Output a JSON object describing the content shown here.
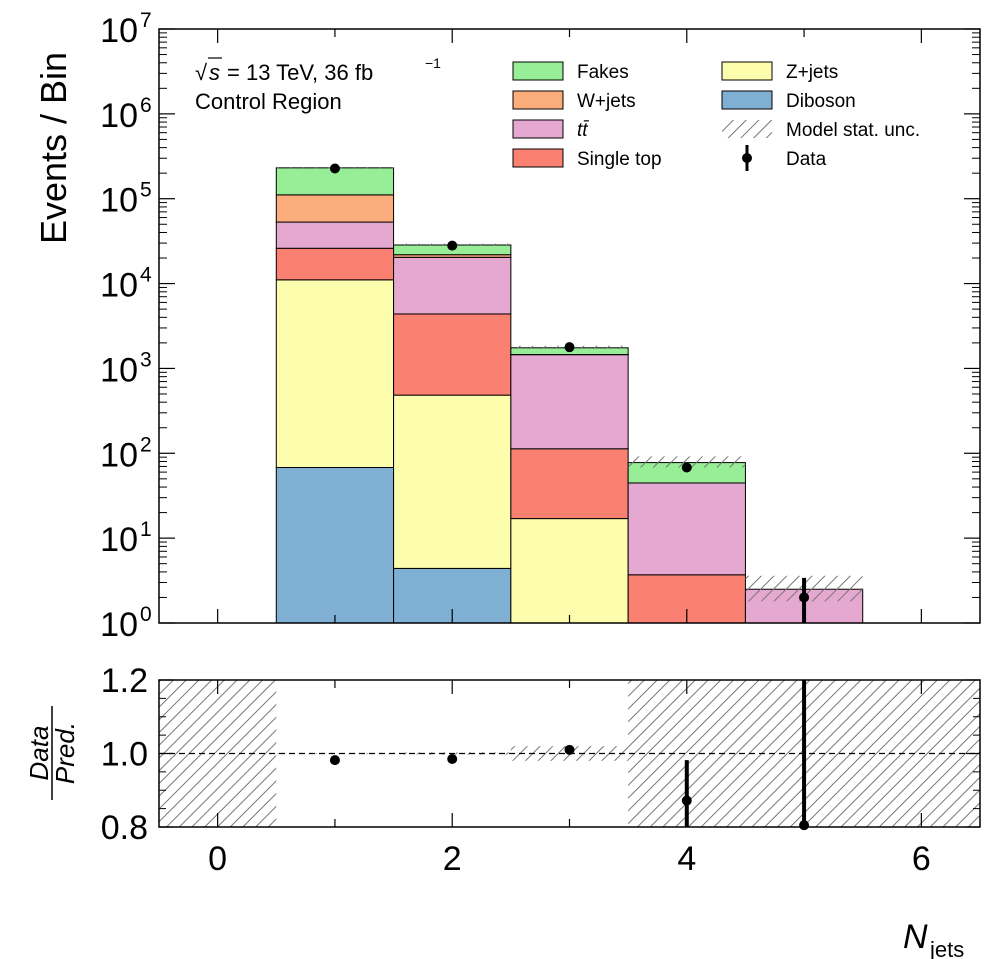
{
  "chart_data": [
    {
      "type": "bar",
      "stacked": true,
      "yscale": "log",
      "title": "",
      "ylabel": "Events / Bin",
      "xlabel": "N_jets",
      "xlim": [
        -0.5,
        6.5
      ],
      "ylim": [
        1,
        10000000
      ],
      "y_tick_exponents": [
        "0",
        "1",
        "2",
        "3",
        "4",
        "5",
        "6",
        "7"
      ],
      "y_tick_base": "10",
      "annotations": {
        "energy_line": "= 13 TeV, 36 fb",
        "energy_sqrt": "√",
        "energy_s": "s",
        "lumi_exp": "−1",
        "region": "Control Region"
      },
      "bins": [
        1,
        2,
        3,
        4,
        5
      ],
      "series": [
        {
          "name": "Diboson",
          "color": "#7fafd3",
          "values": [
            68,
            4.4,
            0,
            0,
            0
          ]
        },
        {
          "name": "Z+jets",
          "color": "#fdfdae",
          "values": [
            11000,
            480,
            17,
            0,
            0
          ]
        },
        {
          "name": "Single top",
          "color": "#fa8072",
          "values": [
            15000,
            3900,
            96,
            3.7,
            0
          ]
        },
        {
          "name": "tt̄",
          "color": "#e5a9d1",
          "values": [
            27000,
            16000,
            1340,
            41,
            2.5
          ]
        },
        {
          "name": "W+jets",
          "color": "#fbad7b",
          "values": [
            58000,
            1500,
            5,
            0,
            0
          ]
        },
        {
          "name": "Fakes",
          "color": "#97ee97",
          "values": [
            120000,
            6600,
            292,
            33,
            0
          ]
        }
      ],
      "totals": [
        231000,
        28500,
        1750,
        78,
        2.5
      ],
      "stat_unc_band": [
        [
          226000,
          236000
        ],
        [
          27700,
          29500
        ],
        [
          1700,
          1850
        ],
        [
          68,
          92
        ],
        [
          1.8,
          3.6
        ]
      ],
      "data": {
        "x": [
          1,
          2,
          3,
          4,
          5
        ],
        "y": [
          227000,
          28000,
          1780,
          68,
          2
        ],
        "err_low": [
          0,
          0,
          0,
          0,
          1.3
        ],
        "err_high": [
          0,
          0,
          0,
          0,
          1.4
        ]
      },
      "legend": [
        {
          "label": "Fakes",
          "kind": "fill",
          "color": "#97ee97"
        },
        {
          "label": "W+jets",
          "kind": "fill",
          "color": "#fbad7b"
        },
        {
          "label": "tt̄",
          "kind": "fill",
          "color": "#e5a9d1"
        },
        {
          "label": "Single top",
          "kind": "fill",
          "color": "#fa8072"
        },
        {
          "label": "Z+jets",
          "kind": "fill",
          "color": "#fdfdae"
        },
        {
          "label": "Diboson",
          "kind": "fill",
          "color": "#7fafd3"
        },
        {
          "label": "Model stat. unc.",
          "kind": "hatch",
          "color": "#777777"
        },
        {
          "label": "Data",
          "kind": "point",
          "color": "#000000"
        }
      ],
      "legend_position": "top-right"
    },
    {
      "type": "scatter",
      "title": "",
      "ylabel_num": "Data",
      "ylabel_den": "Pred.",
      "xlabel": "N_jets",
      "xlim": [
        -0.5,
        6.5
      ],
      "ylim": [
        0.8,
        1.2
      ],
      "x_ticks": [
        "0",
        "2",
        "4",
        "6"
      ],
      "y_ticks": [
        "0.8",
        "1.0",
        "1.2"
      ],
      "reference_line": 1.0,
      "points": {
        "x": [
          1,
          2,
          3,
          4,
          5
        ],
        "y": [
          0.982,
          0.985,
          1.01,
          0.872,
          0.805
        ],
        "err_low": [
          0,
          0,
          0.01,
          0.14,
          0.5
        ],
        "err_high": [
          0,
          0,
          0.01,
          0.11,
          0.5
        ]
      },
      "stat_unc_band": [
        {
          "x0": -0.5,
          "x1": 0.5,
          "lo": 0.8,
          "hi": 1.2
        },
        {
          "x0": 0.5,
          "x1": 1.5,
          "lo": 0.999,
          "hi": 1.001
        },
        {
          "x0": 1.5,
          "x1": 2.5,
          "lo": 0.997,
          "hi": 1.003
        },
        {
          "x0": 2.5,
          "x1": 3.5,
          "lo": 0.98,
          "hi": 1.02
        },
        {
          "x0": 3.5,
          "x1": 6.5,
          "lo": 0.8,
          "hi": 1.2
        }
      ]
    }
  ]
}
